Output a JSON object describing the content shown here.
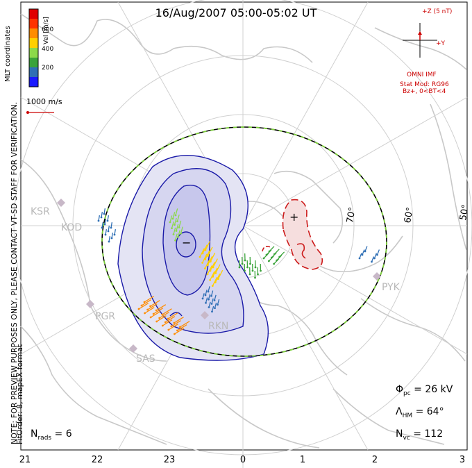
{
  "title": "16/Aug/2007 05:00-05:02 UT",
  "note_line1": "NOTE: FOR PREVIEW PURPOSES ONLY, PLEASE CONTACT VT-SD STAFF FOR VERIFICATION.",
  "note_line2": "FitOrder: 8, mapEX format",
  "colorbar": {
    "title": "Vel [m/s]",
    "ticks": [
      "600",
      "400",
      "200"
    ],
    "colors": [
      "#1a1aff",
      "#2f6fb5",
      "#3aa33a",
      "#8cd94a",
      "#ffd000",
      "#ff8c00",
      "#ff3300",
      "#e00000"
    ]
  },
  "coordinates_label": "MLT coordinates",
  "reference_vector_label": "1000 m/s",
  "imf": {
    "scale_label": "+Z (5 nT)",
    "y_label": "+Y",
    "source": "OMNI IMF",
    "model_line1": "Stat Mod: RG96",
    "model_line2": "Bz+, 0<BT<4",
    "color": "#cc0000"
  },
  "stats": {
    "phi_pc_sym": "Φ",
    "phi_pc_sub": "pc",
    "phi_pc_value": " = 26 kV",
    "lambda_sym": "Λ",
    "lambda_sub": "HM",
    "lambda_value": " = 64°",
    "nvc_sym": "N",
    "nvc_sub": "vc",
    "nvc_value": " = 112",
    "nrads_sym": "N",
    "nrads_sub": "rads",
    "nrads_value": " = 6"
  },
  "mlt_axis": [
    "21",
    "22",
    "23",
    "0",
    "1",
    "2",
    "3"
  ],
  "latitude_labels": [
    "70°",
    "60°",
    "50°"
  ],
  "radars": [
    "KSR",
    "KOD",
    "PGR",
    "SAS",
    "RKN",
    "PYK"
  ],
  "potential_symbols": {
    "min": "−",
    "max": "+"
  }
}
